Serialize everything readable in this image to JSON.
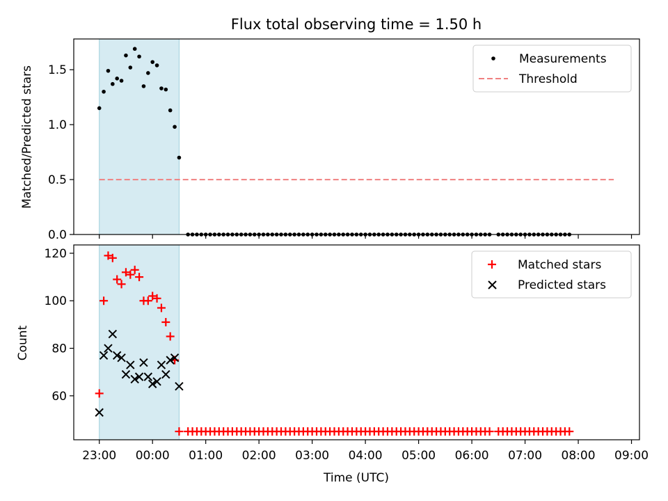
{
  "figure": {
    "title": "Flux total observing time = 1.50 h"
  },
  "chart_data": [
    {
      "type": "scatter",
      "ylabel": "Matched/Predicted stars",
      "ylim": [
        0,
        1.78
      ],
      "yticks": [
        0.0,
        0.5,
        1.0,
        1.5
      ],
      "ytick_labels": [
        "0.0",
        "0.5",
        "1.0",
        "1.5"
      ],
      "xlim": [
        -0.48,
        10.15
      ],
      "shaded_region": [
        0.0,
        1.5
      ],
      "legend": {
        "placement": "top-right",
        "entries": [
          "Measurements",
          "Threshold"
        ]
      },
      "series": [
        {
          "name": "Measurements",
          "marker": "dot",
          "color": "#000000",
          "x": [
            0.0,
            0.0833,
            0.1667,
            0.25,
            0.3333,
            0.4167,
            0.5,
            0.5833,
            0.6667,
            0.75,
            0.8333,
            0.9167,
            1.0,
            1.0833,
            1.1667,
            1.25,
            1.3333,
            1.4167,
            1.5
          ],
          "y": [
            1.15,
            1.3,
            1.49,
            1.37,
            1.42,
            1.4,
            1.63,
            1.52,
            1.69,
            1.62,
            1.35,
            1.47,
            1.57,
            1.54,
            1.33,
            1.32,
            1.13,
            0.98,
            0.7
          ],
          "zeros": {
            "start": 1.6667,
            "step": 0.08333,
            "count": 87,
            "gap": [
              7.4167,
              7.4167
            ]
          }
        },
        {
          "name": "Threshold",
          "type": "line",
          "style": "dashed",
          "color": "#f08080",
          "x": [
            0.0,
            9.6667
          ],
          "y": [
            0.5,
            0.5
          ]
        }
      ]
    },
    {
      "type": "scatter",
      "xlabel": "Time (UTC)",
      "ylabel": "Count",
      "ylim": [
        41.5,
        123.5
      ],
      "yticks": [
        60,
        80,
        100,
        120
      ],
      "ytick_labels": [
        "60",
        "80",
        "100",
        "120"
      ],
      "xlim": [
        -0.48,
        10.15
      ],
      "xticks": [
        0,
        1,
        2,
        3,
        4,
        5,
        6,
        7,
        8,
        9,
        10
      ],
      "xtick_labels": [
        "23:00",
        "00:00",
        "01:00",
        "02:00",
        "03:00",
        "04:00",
        "05:00",
        "06:00",
        "07:00",
        "08:00",
        "09:00"
      ],
      "shaded_region": [
        0.0,
        1.5
      ],
      "legend": {
        "placement": "top-right",
        "entries": [
          "Matched stars",
          "Predicted stars"
        ]
      },
      "series": [
        {
          "name": "Matched stars",
          "marker": "plus",
          "color": "#ff0000",
          "x": [
            0.0,
            0.0833,
            0.1667,
            0.25,
            0.3333,
            0.4167,
            0.5,
            0.5833,
            0.6667,
            0.75,
            0.8333,
            0.9167,
            1.0,
            1.0833,
            1.1667,
            1.25,
            1.3333,
            1.4167,
            1.5
          ],
          "y": [
            61,
            100,
            119,
            118,
            109,
            107,
            112,
            111,
            113,
            110,
            100,
            100,
            102,
            101,
            97,
            91,
            85,
            75,
            45
          ],
          "baseline": {
            "value": 45,
            "start": 1.6667,
            "step": 0.08333,
            "count": 87,
            "gap": [
              7.4167,
              7.4167
            ]
          }
        },
        {
          "name": "Predicted stars",
          "marker": "x",
          "color": "#000000",
          "x": [
            0.0,
            0.0833,
            0.1667,
            0.25,
            0.3333,
            0.4167,
            0.5,
            0.5833,
            0.6667,
            0.75,
            0.8333,
            0.9167,
            1.0,
            1.0833,
            1.1667,
            1.25,
            1.3333,
            1.4167,
            1.5
          ],
          "y": [
            53,
            77,
            80,
            86,
            77,
            76,
            69,
            73,
            67,
            68,
            74,
            68,
            65,
            66,
            73,
            69,
            75,
            76,
            64
          ]
        }
      ]
    }
  ]
}
